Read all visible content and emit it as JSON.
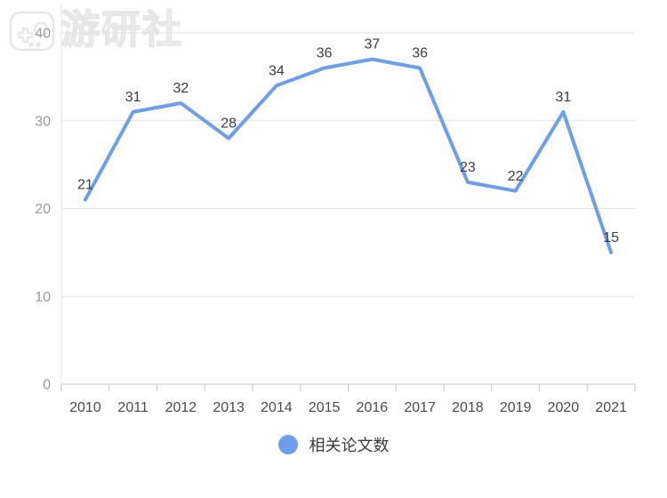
{
  "watermark": {
    "brand_text": "游研社",
    "color": "#e7e7e7"
  },
  "chart_data": {
    "type": "line",
    "title": "",
    "xlabel": "",
    "ylabel": "",
    "categories": [
      "2010",
      "2011",
      "2012",
      "2013",
      "2014",
      "2015",
      "2016",
      "2017",
      "2018",
      "2019",
      "2020",
      "2021"
    ],
    "series": [
      {
        "name": "相关论文数",
        "values": [
          21,
          31,
          32,
          28,
          34,
          36,
          37,
          36,
          23,
          22,
          31,
          15
        ],
        "color": "#6d9eeb"
      }
    ],
    "yticks": [
      0,
      10,
      20,
      30,
      40
    ],
    "ylim": [
      0,
      40
    ],
    "grid": true,
    "data_labels": true,
    "legend_position": "bottom"
  },
  "legend": {
    "items": [
      {
        "label": "相关论文数",
        "marker": "circle",
        "color": "#6d9eeb"
      }
    ]
  },
  "style": {
    "background": "#ffffff",
    "grid_color": "#e2e2e2",
    "axis_color": "#c6c6c6",
    "y_label_color": "#9b9b9b",
    "x_label_color": "#4a4a4a",
    "data_label_color": "#3d3d3d",
    "line_width": 4
  }
}
